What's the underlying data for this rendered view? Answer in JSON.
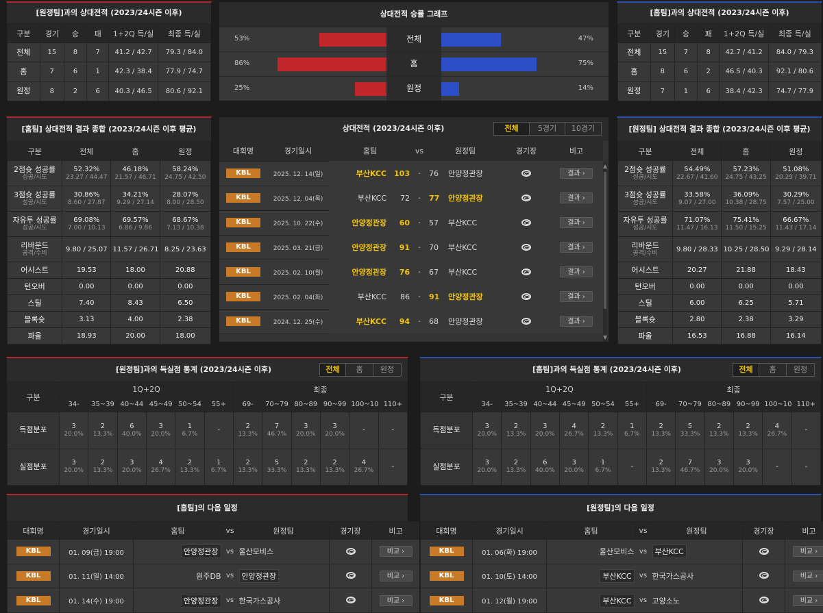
{
  "away_record": {
    "title": "[원정팀]과의 상대전적 (2023/24시즌 이후)",
    "headers": [
      "구분",
      "경기",
      "승",
      "패",
      "1+2Q 득/실",
      "최종 득/실"
    ],
    "rows": [
      [
        "전체",
        "15",
        "8",
        "7",
        "41.2 / 42.7",
        "79.3 / 84.0"
      ],
      [
        "홈",
        "7",
        "6",
        "1",
        "42.3 / 38.4",
        "77.9 / 74.7"
      ],
      [
        "원정",
        "8",
        "2",
        "6",
        "40.3 / 46.5",
        "80.6 / 92.1"
      ]
    ]
  },
  "home_record": {
    "title": "[홈팀]과의 상대전적 (2023/24시즌 이후)",
    "headers": [
      "구분",
      "경기",
      "승",
      "패",
      "1+2Q 득/실",
      "최종 득/실"
    ],
    "rows": [
      [
        "전체",
        "15",
        "7",
        "8",
        "42.7 / 41.2",
        "84.0 / 79.3"
      ],
      [
        "홈",
        "8",
        "6",
        "2",
        "46.5 / 40.3",
        "92.1 / 80.6"
      ],
      [
        "원정",
        "7",
        "1",
        "6",
        "38.4 / 42.3",
        "74.7 / 77.9"
      ]
    ]
  },
  "graph": {
    "title": "상대전적 승률 그래프",
    "colors": {
      "left": "#c2262b",
      "right": "#2c4fc7"
    },
    "rows": [
      {
        "label": "전체",
        "left": "53%",
        "right": "47%",
        "lv": 53,
        "rv": 47
      },
      {
        "label": "홈",
        "left": "86%",
        "right": "75%",
        "lv": 86,
        "rv": 75
      },
      {
        "label": "원정",
        "left": "25%",
        "right": "14%",
        "lv": 25,
        "rv": 14
      }
    ]
  },
  "home_summary": {
    "title": "[홈팀] 상대전적 결과 종합 (2023/24시즌 이후 평균)",
    "headers": [
      "구분",
      "전체",
      "홈",
      "원정"
    ],
    "rows": [
      {
        "label": "2점슛 성공률",
        "sub": "성공/시도",
        "v": [
          [
            "52.32%",
            "23.27 / 44.47"
          ],
          [
            "46.18%",
            "21.57 / 46.71"
          ],
          [
            "58.24%",
            "24.75 / 42.50"
          ]
        ]
      },
      {
        "label": "3점슛 성공률",
        "sub": "성공/시도",
        "v": [
          [
            "30.86%",
            "8.60 / 27.87"
          ],
          [
            "34.21%",
            "9.29 / 27.14"
          ],
          [
            "28.07%",
            "8.00 / 28.50"
          ]
        ]
      },
      {
        "label": "자유투 성공률",
        "sub": "성공/시도",
        "v": [
          [
            "69.08%",
            "7.00 / 10.13"
          ],
          [
            "69.57%",
            "6.86 / 9.86"
          ],
          [
            "68.67%",
            "7.13 / 10.38"
          ]
        ]
      },
      {
        "label": "리바운드",
        "sub": "공격/수비",
        "v": [
          [
            "9.80 / 25.07",
            ""
          ],
          [
            "11.57 / 26.71",
            ""
          ],
          [
            "8.25 / 23.63",
            ""
          ]
        ]
      },
      {
        "label": "어시스트",
        "sub": "",
        "v": [
          [
            "19.53",
            ""
          ],
          [
            "18.00",
            ""
          ],
          [
            "20.88",
            ""
          ]
        ]
      },
      {
        "label": "턴오버",
        "sub": "",
        "v": [
          [
            "0.00",
            ""
          ],
          [
            "0.00",
            ""
          ],
          [
            "0.00",
            ""
          ]
        ]
      },
      {
        "label": "스틸",
        "sub": "",
        "v": [
          [
            "7.40",
            ""
          ],
          [
            "8.43",
            ""
          ],
          [
            "6.50",
            ""
          ]
        ]
      },
      {
        "label": "블록슛",
        "sub": "",
        "v": [
          [
            "3.13",
            ""
          ],
          [
            "4.00",
            ""
          ],
          [
            "2.38",
            ""
          ]
        ]
      },
      {
        "label": "파울",
        "sub": "",
        "v": [
          [
            "18.93",
            ""
          ],
          [
            "20.00",
            ""
          ],
          [
            "18.00",
            ""
          ]
        ]
      }
    ]
  },
  "away_summary": {
    "title": "[원정팀] 상대전적 결과 종합 (2023/24시즌 이후 평균)",
    "headers": [
      "구분",
      "전체",
      "홈",
      "원정"
    ],
    "rows": [
      {
        "label": "2점슛 성공률",
        "sub": "성공/시도",
        "v": [
          [
            "54.49%",
            "22.67 / 41.60"
          ],
          [
            "57.23%",
            "24.75 / 43.25"
          ],
          [
            "51.08%",
            "20.29 / 39.71"
          ]
        ]
      },
      {
        "label": "3점슛 성공률",
        "sub": "성공/시도",
        "v": [
          [
            "33.58%",
            "9.07 / 27.00"
          ],
          [
            "36.09%",
            "10.38 / 28.75"
          ],
          [
            "30.29%",
            "7.57 / 25.00"
          ]
        ]
      },
      {
        "label": "자유투 성공률",
        "sub": "성공/시도",
        "v": [
          [
            "71.07%",
            "11.47 / 16.13"
          ],
          [
            "75.41%",
            "11.50 / 15.25"
          ],
          [
            "66.67%",
            "11.43 / 17.14"
          ]
        ]
      },
      {
        "label": "리바운드",
        "sub": "공격/수비",
        "v": [
          [
            "9.80 / 28.33",
            ""
          ],
          [
            "10.25 / 28.50",
            ""
          ],
          [
            "9.29 / 28.14",
            ""
          ]
        ]
      },
      {
        "label": "어시스트",
        "sub": "",
        "v": [
          [
            "20.27",
            ""
          ],
          [
            "21.88",
            ""
          ],
          [
            "18.43",
            ""
          ]
        ]
      },
      {
        "label": "턴오버",
        "sub": "",
        "v": [
          [
            "0.00",
            ""
          ],
          [
            "0.00",
            ""
          ],
          [
            "0.00",
            ""
          ]
        ]
      },
      {
        "label": "스틸",
        "sub": "",
        "v": [
          [
            "6.00",
            ""
          ],
          [
            "6.25",
            ""
          ],
          [
            "5.71",
            ""
          ]
        ]
      },
      {
        "label": "블록슛",
        "sub": "",
        "v": [
          [
            "2.80",
            ""
          ],
          [
            "2.38",
            ""
          ],
          [
            "3.29",
            ""
          ]
        ]
      },
      {
        "label": "파울",
        "sub": "",
        "v": [
          [
            "16.53",
            ""
          ],
          [
            "16.88",
            ""
          ],
          [
            "16.14",
            ""
          ]
        ]
      }
    ]
  },
  "h2h": {
    "title": "상대전적 (2023/24시즌 이후)",
    "tabs": [
      "전체",
      "5경기",
      "10경기"
    ],
    "headers": {
      "league": "대회명",
      "date": "경기일시",
      "home": "홈팀",
      "vs": "vs",
      "away": "원정팀",
      "venue": "경기장",
      "note": "비고"
    },
    "games": [
      {
        "league": "KBL",
        "date": "2025. 12. 14(일)",
        "home": "부산KCC",
        "hs": "103",
        "as": "76",
        "away": "안양정관장",
        "win": "home",
        "btn": "결과"
      },
      {
        "league": "KBL",
        "date": "2025. 12. 04(목)",
        "home": "부산KCC",
        "hs": "72",
        "as": "77",
        "away": "안양정관장",
        "win": "away",
        "btn": "결과"
      },
      {
        "league": "KBL",
        "date": "2025. 10. 22(수)",
        "home": "안양정관장",
        "hs": "60",
        "as": "57",
        "away": "부산KCC",
        "win": "home",
        "btn": "결과"
      },
      {
        "league": "KBL",
        "date": "2025. 03. 21(금)",
        "home": "안양정관장",
        "hs": "91",
        "as": "70",
        "away": "부산KCC",
        "win": "home",
        "btn": "결과"
      },
      {
        "league": "KBL",
        "date": "2025. 02. 10(월)",
        "home": "안양정관장",
        "hs": "76",
        "as": "67",
        "away": "부산KCC",
        "win": "home",
        "btn": "결과"
      },
      {
        "league": "KBL",
        "date": "2025. 02. 04(화)",
        "home": "부산KCC",
        "hs": "86",
        "as": "91",
        "away": "안양정관장",
        "win": "away",
        "btn": "결과"
      },
      {
        "league": "KBL",
        "date": "2024. 12. 25(수)",
        "home": "부산KCC",
        "hs": "94",
        "as": "68",
        "away": "안양정관장",
        "win": "home",
        "btn": "결과"
      }
    ]
  },
  "away_points": {
    "title": "[원정팀]과의 득실점 통계 (2023/24시즌 이후)",
    "tabs": [
      "전체",
      "홈",
      "원정"
    ],
    "group_half": "1Q+2Q",
    "group_final": "최종",
    "label": "구분",
    "ranges": [
      "34-",
      "35~39",
      "40~44",
      "45~49",
      "50~54",
      "55+",
      "69-",
      "70~79",
      "80~89",
      "90~99",
      "100~109",
      "110+"
    ],
    "rows": [
      {
        "label": "득점분포",
        "cells": [
          [
            "3",
            "20.0%"
          ],
          [
            "2",
            "13.3%"
          ],
          [
            "6",
            "40.0%"
          ],
          [
            "3",
            "20.0%"
          ],
          [
            "1",
            "6.7%"
          ],
          [
            "-",
            ""
          ],
          [
            "2",
            "13.3%"
          ],
          [
            "7",
            "46.7%"
          ],
          [
            "3",
            "20.0%"
          ],
          [
            "3",
            "20.0%"
          ],
          [
            "-",
            ""
          ],
          [
            "-",
            ""
          ]
        ]
      },
      {
        "label": "실점분포",
        "cells": [
          [
            "3",
            "20.0%"
          ],
          [
            "2",
            "13.3%"
          ],
          [
            "3",
            "20.0%"
          ],
          [
            "4",
            "26.7%"
          ],
          [
            "2",
            "13.3%"
          ],
          [
            "1",
            "6.7%"
          ],
          [
            "2",
            "13.3%"
          ],
          [
            "5",
            "33.3%"
          ],
          [
            "2",
            "13.3%"
          ],
          [
            "2",
            "13.3%"
          ],
          [
            "4",
            "26.7%"
          ],
          [
            "-",
            ""
          ]
        ]
      }
    ]
  },
  "home_points": {
    "title": "[홈팀]과의 득실점 통계 (2023/24시즌 이후)",
    "tabs": [
      "전체",
      "홈",
      "원정"
    ],
    "group_half": "1Q+2Q",
    "group_final": "최종",
    "label": "구분",
    "ranges": [
      "34-",
      "35~39",
      "40~44",
      "45~49",
      "50~54",
      "55+",
      "69-",
      "70~79",
      "80~89",
      "90~99",
      "100~109",
      "110+"
    ],
    "rows": [
      {
        "label": "득점분포",
        "cells": [
          [
            "3",
            "20.0%"
          ],
          [
            "2",
            "13.3%"
          ],
          [
            "3",
            "20.0%"
          ],
          [
            "4",
            "26.7%"
          ],
          [
            "2",
            "13.3%"
          ],
          [
            "1",
            "6.7%"
          ],
          [
            "2",
            "13.3%"
          ],
          [
            "5",
            "33.3%"
          ],
          [
            "2",
            "13.3%"
          ],
          [
            "2",
            "13.3%"
          ],
          [
            "4",
            "26.7%"
          ],
          [
            "-",
            ""
          ]
        ]
      },
      {
        "label": "실점분포",
        "cells": [
          [
            "3",
            "20.0%"
          ],
          [
            "2",
            "13.3%"
          ],
          [
            "6",
            "40.0%"
          ],
          [
            "3",
            "20.0%"
          ],
          [
            "1",
            "6.7%"
          ],
          [
            "-",
            ""
          ],
          [
            "2",
            "13.3%"
          ],
          [
            "7",
            "46.7%"
          ],
          [
            "3",
            "20.0%"
          ],
          [
            "3",
            "20.0%"
          ],
          [
            "-",
            ""
          ],
          [
            "-",
            ""
          ]
        ]
      }
    ]
  },
  "home_next": {
    "title": "[홈팀]의 다음 일정",
    "headers": [
      "대회명",
      "경기일시",
      "홈팀",
      "vs",
      "원정팀",
      "경기장",
      "비고"
    ],
    "games": [
      {
        "league": "KBL",
        "date": "01. 09(금) 19:00",
        "home": "안양정관장",
        "away": "울산모비스",
        "mark": "home",
        "btn": "비교"
      },
      {
        "league": "KBL",
        "date": "01. 11(일) 14:00",
        "home": "원주DB",
        "away": "안양정관장",
        "mark": "away",
        "btn": "비교"
      },
      {
        "league": "KBL",
        "date": "01. 14(수) 19:00",
        "home": "안양정관장",
        "away": "한국가스공사",
        "mark": "home",
        "btn": "비교"
      }
    ]
  },
  "away_next": {
    "title": "[원정팀]의 다음 일정",
    "headers": [
      "대회명",
      "경기일시",
      "홈팀",
      "vs",
      "원정팀",
      "경기장",
      "비고"
    ],
    "games": [
      {
        "league": "KBL",
        "date": "01. 06(화) 19:00",
        "home": "울산모비스",
        "away": "부산KCC",
        "mark": "away",
        "btn": "비교"
      },
      {
        "league": "KBL",
        "date": "01. 10(토) 14:00",
        "home": "부산KCC",
        "away": "한국가스공사",
        "mark": "home",
        "btn": "비교"
      },
      {
        "league": "KBL",
        "date": "01. 12(월) 19:00",
        "home": "부산KCC",
        "away": "고양소노",
        "mark": "home",
        "btn": "비교"
      }
    ]
  }
}
